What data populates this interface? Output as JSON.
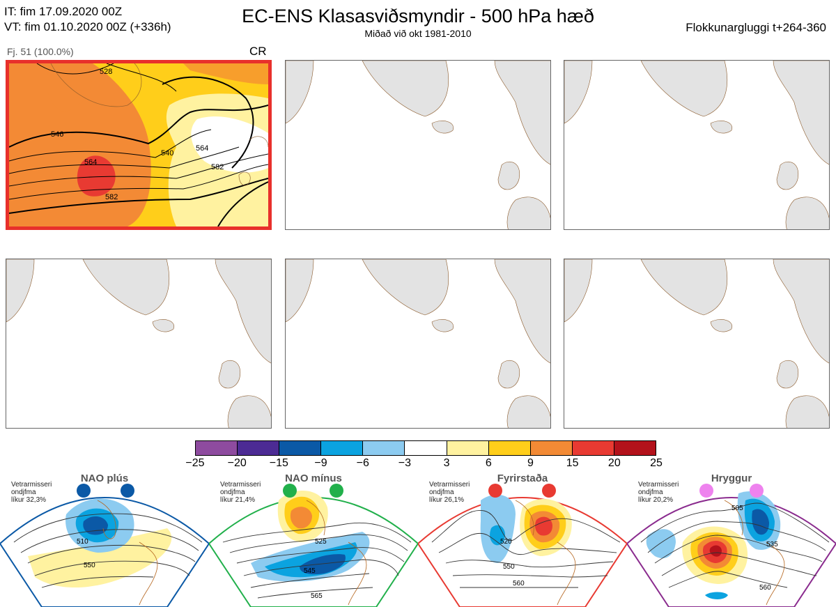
{
  "header": {
    "it_line": "IT: fim 17.09.2020 00Z",
    "vt_line": "VT: fim 01.10.2020 00Z  (+336h)",
    "title": "EC-ENS Klasasviðsmyndir - 500 hPa hæð",
    "subtitle": "Miðað við okt 1981-2010",
    "window": "Flokkunargluggi t+264-360"
  },
  "main_panel": {
    "member_label": "Fj. 51 (100.0%)",
    "regime_code": "CR",
    "contour_labels": [
      "528",
      "546",
      "564",
      "582",
      "540",
      "564",
      "582"
    ]
  },
  "colorbar": {
    "colors": [
      "#8e4b9f",
      "#4c2b94",
      "#0b59a6",
      "#0ba3e0",
      "#8ccbf0",
      "#ffffff",
      "#fff2a0",
      "#ffce1a",
      "#f38a35",
      "#e83a32",
      "#b3121b"
    ],
    "ticks": [
      "−25",
      "−20",
      "−15",
      "−9",
      "−6",
      "−3",
      "3",
      "6",
      "9",
      "15",
      "20",
      "25"
    ]
  },
  "regimes": [
    {
      "name": "NAO plús",
      "info": [
        "Vetrarmisseri",
        "ondjfma",
        "líkur 32,3%"
      ],
      "labels": [
        "510",
        "550"
      ],
      "marker_color": "#0b59a6",
      "frame_color": "#0b59a6"
    },
    {
      "name": "NAO mínus",
      "info": [
        "Vetrarmisseri",
        "ondjfma",
        "líkur 21,4%"
      ],
      "labels": [
        "525",
        "545",
        "565"
      ],
      "marker_color": "#21b04b",
      "frame_color": "#21b04b"
    },
    {
      "name": "Fyrirstaða",
      "info": [
        "Vetrarmisseri",
        "ondjfma",
        "líkur 26,1%"
      ],
      "labels": [
        "520",
        "550",
        "560"
      ],
      "marker_color": "#e83a32",
      "frame_color": "#e83a32"
    },
    {
      "name": "Hryggur",
      "info": [
        "Vetrarmisseri",
        "ondjfma",
        "líkur 20,2%"
      ],
      "labels": [
        "505",
        "535",
        "560"
      ],
      "marker_color": "#ee82ee",
      "frame_color": "#8a2b8e"
    }
  ]
}
